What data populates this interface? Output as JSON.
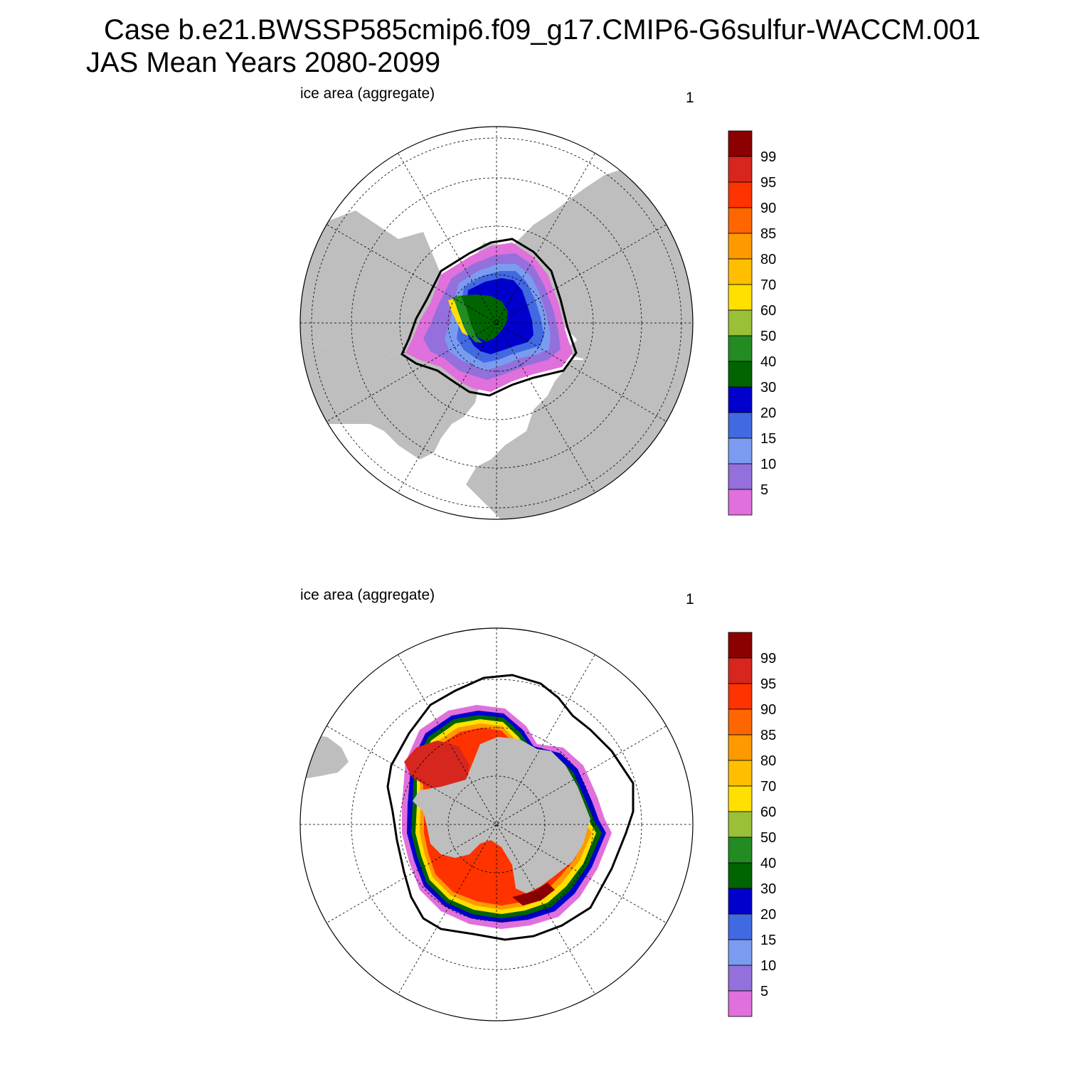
{
  "title": {
    "line1": "Case b.e21.BWSSP585cmip6.f09_g17.CMIP6-G6sulfur-WACCM.001",
    "line2": "JAS Mean   Years 2080-2099"
  },
  "panels": [
    {
      "id": "north",
      "label": "ice area  (aggregate)",
      "number": "1",
      "hemisphere": "Arctic (North Polar Stereographic)"
    },
    {
      "id": "south",
      "label": "ice area  (aggregate)",
      "number": "1",
      "hemisphere": "Antarctic (South Polar Stereographic)"
    }
  ],
  "colorbar": {
    "labels": [
      "99",
      "95",
      "90",
      "85",
      "80",
      "70",
      "60",
      "50",
      "40",
      "30",
      "20",
      "15",
      "10",
      "5"
    ],
    "colors": [
      "#8b0000",
      "#d7261d",
      "#ff3300",
      "#ff6600",
      "#ff9900",
      "#ffbf00",
      "#ffe000",
      "#9abf38",
      "#228b22",
      "#006400",
      "#0000cd",
      "#4169e1",
      "#7a9cf0",
      "#9370db",
      "#e070dc"
    ]
  },
  "map_style": {
    "land_color": "#bebebe",
    "ocean_color": "#ffffff",
    "grid_style": "dashed",
    "contour_color": "#000000"
  }
}
